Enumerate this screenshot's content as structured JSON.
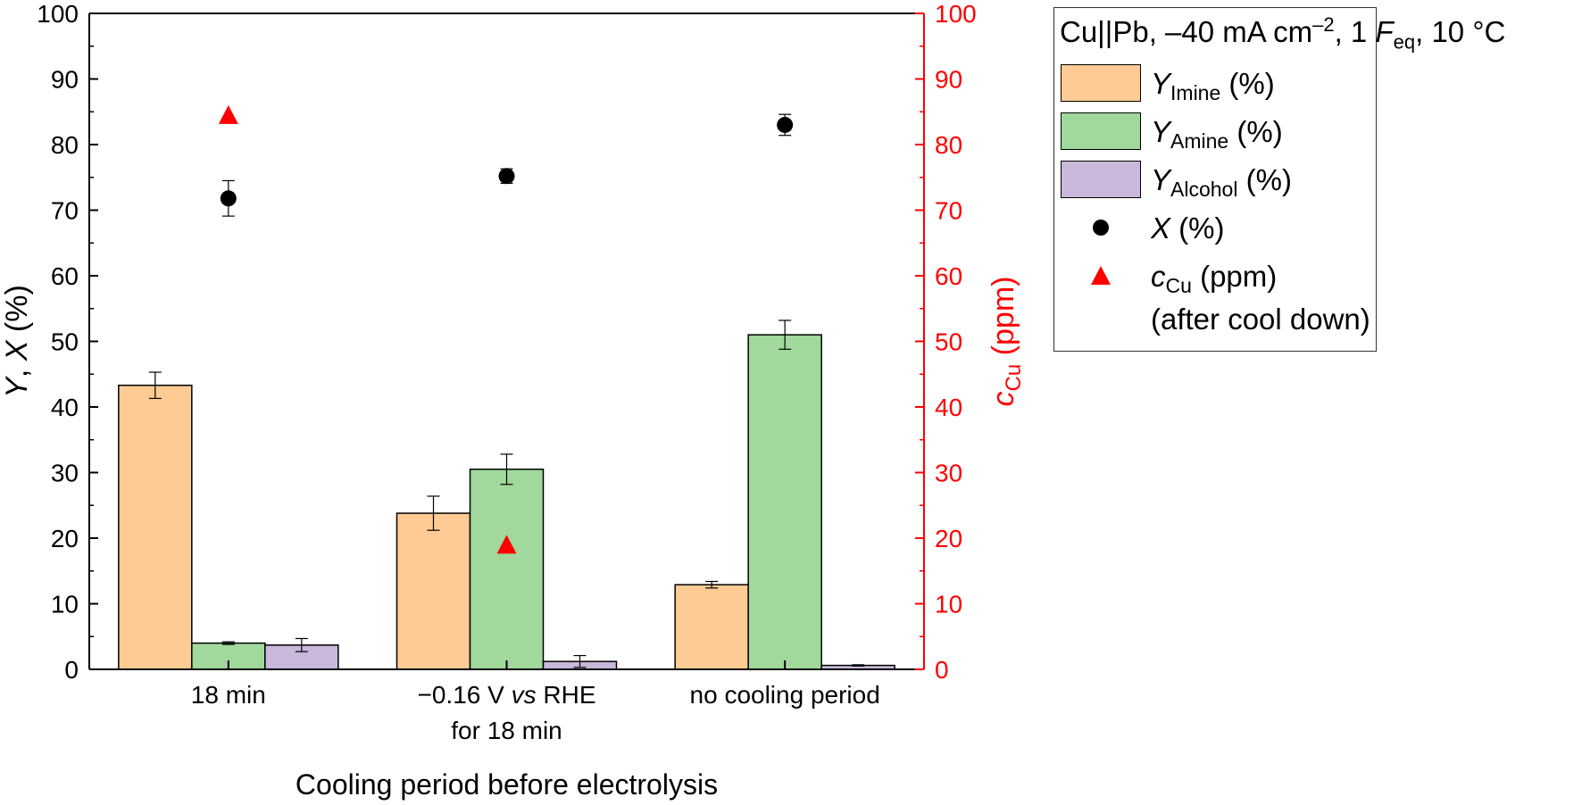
{
  "chart_data": {
    "type": "bar",
    "xlabel": "Cooling period before electrolysis",
    "ylabel_left": "Y, X  (%)",
    "ylabel_right": "c_Cu (ppm)",
    "ylim_left": [
      0,
      100
    ],
    "ylim_right": [
      0,
      100
    ],
    "yticks": [
      0,
      10,
      20,
      30,
      40,
      50,
      60,
      70,
      80,
      90,
      100
    ],
    "categories": [
      [
        "18 min"
      ],
      [
        "−0.16 V vs RHE",
        "for 18 min"
      ],
      [
        "no cooling period"
      ]
    ],
    "series": [
      {
        "name": "Y_Imine (%)",
        "color": "#fdcb93",
        "values": [
          43.3,
          23.8,
          12.9
        ],
        "errors": [
          2.0,
          2.6,
          0.5
        ]
      },
      {
        "name": "Y_Amine (%)",
        "color": "#a0d99b",
        "values": [
          4.0,
          30.5,
          51.0
        ],
        "errors": [
          0.2,
          2.3,
          2.2
        ]
      },
      {
        "name": "Y_Alcohol (%)",
        "color": "#c9b8da",
        "values": [
          3.7,
          1.2,
          0.6
        ],
        "errors": [
          1.0,
          0.9,
          0.1
        ]
      }
    ],
    "points": [
      {
        "name": "X (%)",
        "axis": "left",
        "marker": "circle",
        "color": "#000000",
        "values": [
          71.8,
          75.2,
          83.0
        ],
        "errors": [
          2.7,
          1.1,
          1.6
        ]
      },
      {
        "name": "c_Cu (ppm)",
        "axis": "right",
        "marker": "triangle",
        "color": "#ff0000",
        "values": [
          84.5,
          19.0,
          null
        ]
      }
    ],
    "legend": {
      "title_parts": [
        "Cu||Pb, –40 mA cm",
        "–2",
        ", 1 ",
        "F",
        "eq",
        ", 10 °C"
      ],
      "placement": "outside-right",
      "entries": [
        {
          "symbol": "Y",
          "sub": "Imine",
          "unit": " (%)"
        },
        {
          "symbol": "Y",
          "sub": "Amine",
          "unit": " (%)"
        },
        {
          "symbol": "Y",
          "sub": "Alcohol",
          "unit": " (%)"
        },
        {
          "symbol": "X",
          "sub": "",
          "unit": " (%)"
        },
        {
          "symbol": "c",
          "sub": "Cu",
          "unit": " (ppm)"
        }
      ],
      "note": "(after cool down)"
    },
    "colors": {
      "right_axis": "#ff0000",
      "left_axis": "#000000"
    }
  }
}
